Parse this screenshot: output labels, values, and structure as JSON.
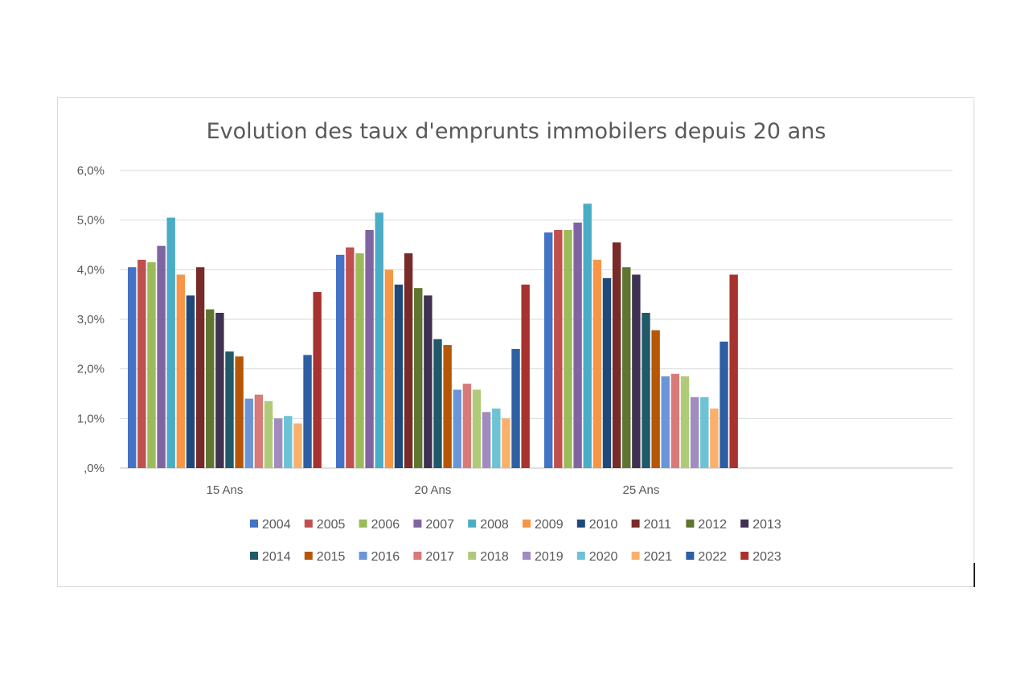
{
  "chart_data": {
    "type": "bar",
    "title": "Evolution des taux d'emprunts immobilers depuis 20 ans",
    "categories": [
      "15 Ans",
      "20 Ans",
      "25 Ans"
    ],
    "y_tick_labels": [
      "6,0%",
      "5,0%",
      "4,0%",
      "3,0%",
      "2,0%",
      "1,0%",
      ",0%"
    ],
    "ylim": [
      0,
      6
    ],
    "grid": true,
    "legend_position": "bottom",
    "series": [
      {
        "name": "2004",
        "color": "#4472C4",
        "values": [
          4.05,
          4.3,
          4.75
        ]
      },
      {
        "name": "2005",
        "color": "#C0504D",
        "values": [
          4.2,
          4.45,
          4.8
        ]
      },
      {
        "name": "2006",
        "color": "#9BBB59",
        "values": [
          4.15,
          4.33,
          4.8
        ]
      },
      {
        "name": "2007",
        "color": "#8064A2",
        "values": [
          4.48,
          4.8,
          4.95
        ]
      },
      {
        "name": "2008",
        "color": "#4BACC6",
        "values": [
          5.05,
          5.15,
          5.33
        ]
      },
      {
        "name": "2009",
        "color": "#F79646",
        "values": [
          3.9,
          4.0,
          4.2
        ]
      },
      {
        "name": "2010",
        "color": "#1F497D",
        "values": [
          3.48,
          3.7,
          3.83
        ]
      },
      {
        "name": "2011",
        "color": "#772C2A",
        "values": [
          4.05,
          4.33,
          4.55
        ]
      },
      {
        "name": "2012",
        "color": "#5F7530",
        "values": [
          3.2,
          3.63,
          4.05
        ]
      },
      {
        "name": "2013",
        "color": "#3F3151",
        "values": [
          3.13,
          3.48,
          3.9
        ]
      },
      {
        "name": "2014",
        "color": "#215968",
        "values": [
          2.35,
          2.6,
          3.13
        ]
      },
      {
        "name": "2015",
        "color": "#B65708",
        "values": [
          2.25,
          2.48,
          2.78
        ]
      },
      {
        "name": "2016",
        "color": "#6A96D8",
        "values": [
          1.4,
          1.58,
          1.85
        ]
      },
      {
        "name": "2017",
        "color": "#D87A78",
        "values": [
          1.48,
          1.7,
          1.9
        ]
      },
      {
        "name": "2018",
        "color": "#AFCB7A",
        "values": [
          1.35,
          1.58,
          1.85
        ]
      },
      {
        "name": "2019",
        "color": "#A28BC0",
        "values": [
          1.0,
          1.13,
          1.43
        ]
      },
      {
        "name": "2020",
        "color": "#6DC3D6",
        "values": [
          1.05,
          1.2,
          1.43
        ]
      },
      {
        "name": "2021",
        "color": "#FAB06A",
        "values": [
          0.9,
          1.0,
          1.2
        ]
      },
      {
        "name": "2022",
        "color": "#2E5FA3",
        "values": [
          2.28,
          2.4,
          2.55
        ]
      },
      {
        "name": "2023",
        "color": "#A8322E",
        "values": [
          3.55,
          3.7,
          3.9
        ]
      }
    ]
  }
}
